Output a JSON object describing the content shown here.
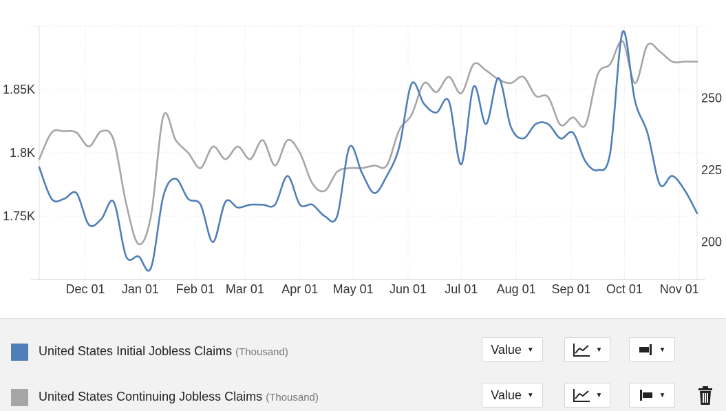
{
  "chart_data": {
    "type": "line",
    "x_labels": [
      "Dec 01",
      "Jan 01",
      "Feb 01",
      "Mar 01",
      "Apr 01",
      "May 01",
      "Jun 01",
      "Jul 01",
      "Aug 01",
      "Sep 01",
      "Oct 01",
      "Nov 01"
    ],
    "y_left_ticks": [
      "1.75K",
      "1.8K",
      "1.85K"
    ],
    "y_right_ticks": [
      "200",
      "225",
      "250"
    ],
    "y_left_range": [
      1.7,
      1.9
    ],
    "y_right_range": [
      187,
      275
    ],
    "grid": true,
    "series": [
      {
        "name": "United States Initial Jobless Claims",
        "unit": "(Thousand)",
        "axis": "right",
        "color": "#4f7fb8",
        "x": [
          "2022-11-05",
          "2022-11-12",
          "2022-11-19",
          "2022-11-26",
          "2022-12-03",
          "2022-12-10",
          "2022-12-17",
          "2022-12-24",
          "2022-12-31",
          "2023-01-07",
          "2023-01-14",
          "2023-01-21",
          "2023-01-28",
          "2023-02-04",
          "2023-02-11",
          "2023-02-18",
          "2023-02-25",
          "2023-03-04",
          "2023-03-11",
          "2023-03-18",
          "2023-03-25",
          "2023-04-01",
          "2023-04-08",
          "2023-04-15",
          "2023-04-22",
          "2023-04-29",
          "2023-05-06",
          "2023-05-13",
          "2023-05-20",
          "2023-05-27",
          "2023-06-03",
          "2023-06-10",
          "2023-06-17",
          "2023-06-24",
          "2023-07-01",
          "2023-07-08",
          "2023-07-15",
          "2023-07-22",
          "2023-07-29",
          "2023-08-05",
          "2023-08-12",
          "2023-08-19",
          "2023-08-26",
          "2023-09-02",
          "2023-09-09",
          "2023-09-16",
          "2023-09-23",
          "2023-09-30",
          "2023-10-07",
          "2023-10-14",
          "2023-10-21",
          "2023-10-28",
          "2023-11-04",
          "2023-11-11"
        ],
        "values": [
          226,
          215,
          215,
          217,
          206,
          208,
          214,
          195,
          195,
          191,
          216,
          222,
          215,
          213,
          200,
          214,
          212,
          213,
          213,
          213,
          223,
          213,
          213,
          209,
          209,
          233,
          224,
          217,
          223,
          233,
          255,
          248,
          245,
          249,
          227,
          254,
          241,
          257,
          240,
          236,
          241,
          241,
          236,
          238,
          228,
          225,
          231,
          273,
          249,
          238,
          220,
          223,
          218,
          210
        ]
      },
      {
        "name": "United States Continuing Jobless Claims",
        "unit": "(Thousand)",
        "axis": "left",
        "color": "#a6a6a6",
        "x": [
          "2022-11-05",
          "2022-11-12",
          "2022-11-19",
          "2022-11-26",
          "2022-12-03",
          "2022-12-10",
          "2022-12-17",
          "2022-12-24",
          "2022-12-31",
          "2023-01-07",
          "2023-01-14",
          "2023-01-21",
          "2023-01-28",
          "2023-02-04",
          "2023-02-11",
          "2023-02-18",
          "2023-02-25",
          "2023-03-04",
          "2023-03-11",
          "2023-03-18",
          "2023-03-25",
          "2023-04-01",
          "2023-04-08",
          "2023-04-15",
          "2023-04-22",
          "2023-04-29",
          "2023-05-06",
          "2023-05-13",
          "2023-05-20",
          "2023-05-27",
          "2023-06-03",
          "2023-06-10",
          "2023-06-17",
          "2023-06-24",
          "2023-07-01",
          "2023-07-08",
          "2023-07-15",
          "2023-07-22",
          "2023-07-29",
          "2023-08-05",
          "2023-08-12",
          "2023-08-19",
          "2023-08-26",
          "2023-09-02",
          "2023-09-09",
          "2023-09-16",
          "2023-09-23",
          "2023-09-30",
          "2023-10-07",
          "2023-10-14",
          "2023-10-21",
          "2023-10-28",
          "2023-11-04",
          "2023-11-11"
        ],
        "values": [
          1.795,
          1.816,
          1.817,
          1.816,
          1.805,
          1.817,
          1.81,
          1.76,
          1.728,
          1.75,
          1.829,
          1.81,
          1.8,
          1.788,
          1.805,
          1.795,
          1.805,
          1.795,
          1.81,
          1.79,
          1.81,
          1.8,
          1.776,
          1.77,
          1.785,
          1.788,
          1.788,
          1.79,
          1.79,
          1.818,
          1.83,
          1.855,
          1.848,
          1.86,
          1.847,
          1.87,
          1.865,
          1.858,
          1.855,
          1.86,
          1.845,
          1.844,
          1.822,
          1.828,
          1.822,
          1.862,
          1.87,
          1.888,
          1.855,
          1.885,
          1.88,
          1.872,
          1.872,
          1.872
        ]
      }
    ]
  },
  "legend": {
    "rows": [
      {
        "name": "United States Initial Jobless Claims",
        "unit": "(Thousand)",
        "color": "#4f7fb8",
        "mode_label": "Value",
        "type_icon": "line-chart-icon",
        "axis_icon": "right-axis-icon"
      },
      {
        "name": "United States Continuing Jobless Claims",
        "unit": "(Thousand)",
        "color": "#a6a6a6",
        "mode_label": "Value",
        "type_icon": "line-chart-icon",
        "axis_icon": "left-axis-icon",
        "delete_icon": "trash-icon"
      }
    ]
  }
}
